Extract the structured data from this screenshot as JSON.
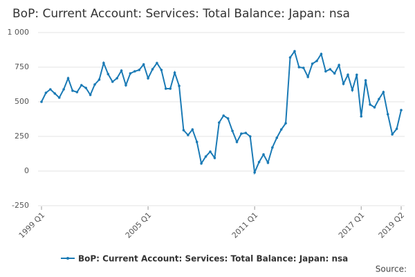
{
  "chart_data": {
    "type": "line",
    "title": "BoP: Current Account: Services: Total Balance: Japan: nsa",
    "source": "Source:",
    "categories": [
      "1999 Q1",
      null,
      null,
      null,
      null,
      null,
      null,
      null,
      null,
      null,
      null,
      null,
      null,
      null,
      null,
      null,
      null,
      null,
      null,
      null,
      null,
      null,
      null,
      null,
      "2005 Q1",
      null,
      null,
      null,
      null,
      null,
      null,
      null,
      null,
      null,
      null,
      null,
      null,
      null,
      null,
      null,
      null,
      null,
      null,
      null,
      null,
      null,
      null,
      null,
      "2011 Q1",
      null,
      null,
      null,
      null,
      null,
      null,
      null,
      null,
      null,
      null,
      null,
      null,
      null,
      null,
      null,
      null,
      null,
      null,
      null,
      null,
      null,
      null,
      null,
      "2017 Q1",
      null,
      null,
      null,
      null,
      null,
      null,
      null,
      null,
      "2019 Q2"
    ],
    "series": [
      {
        "name": "BoP: Current Account: Services: Total Balance: Japan: nsa",
        "color": "#1a7ab5",
        "values": [
          500,
          565,
          590,
          560,
          530,
          590,
          670,
          580,
          570,
          620,
          600,
          550,
          625,
          660,
          780,
          700,
          645,
          670,
          725,
          620,
          705,
          720,
          730,
          770,
          670,
          735,
          780,
          730,
          595,
          595,
          710,
          615,
          295,
          260,
          300,
          210,
          55,
          105,
          140,
          95,
          350,
          400,
          380,
          290,
          210,
          270,
          275,
          250,
          -10,
          65,
          120,
          60,
          170,
          240,
          300,
          345,
          820,
          865,
          750,
          745,
          680,
          775,
          795,
          845,
          720,
          735,
          705,
          765,
          630,
          695,
          585,
          695,
          395,
          655,
          480,
          460,
          520,
          570,
          410,
          265,
          305,
          440
        ]
      }
    ],
    "ylim": [
      -250,
      1000
    ],
    "yticks": [
      -250,
      0,
      250,
      500,
      750,
      {
        "value": 1000,
        "label": "1 000"
      }
    ],
    "grid": true
  }
}
